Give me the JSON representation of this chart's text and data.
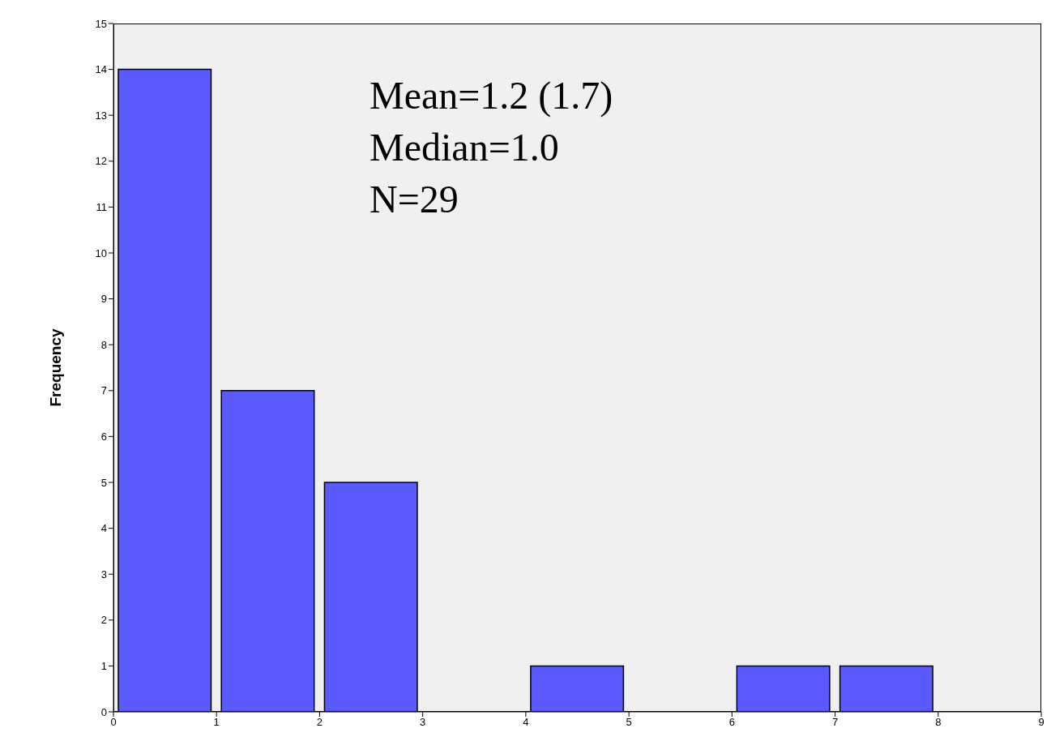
{
  "chart_data": {
    "type": "histogram",
    "bins": [
      0,
      1,
      2,
      3,
      4,
      5,
      6,
      7,
      8,
      9
    ],
    "values": [
      14,
      7,
      5,
      0,
      1,
      0,
      1,
      1,
      0
    ],
    "color": "#5a5aff",
    "ylabel": "Frequency",
    "xlim": [
      0,
      9
    ],
    "xticks": [
      0,
      1,
      2,
      3,
      4,
      5,
      6,
      7,
      8,
      9
    ],
    "ylim": [
      0,
      15
    ],
    "yticks": [
      0,
      1,
      2,
      3,
      4,
      5,
      6,
      7,
      8,
      9,
      10,
      11,
      12,
      13,
      14,
      15
    ],
    "annotations": [
      "Mean=1.2 (1.7)",
      "Median=1.0",
      "N=29"
    ]
  }
}
